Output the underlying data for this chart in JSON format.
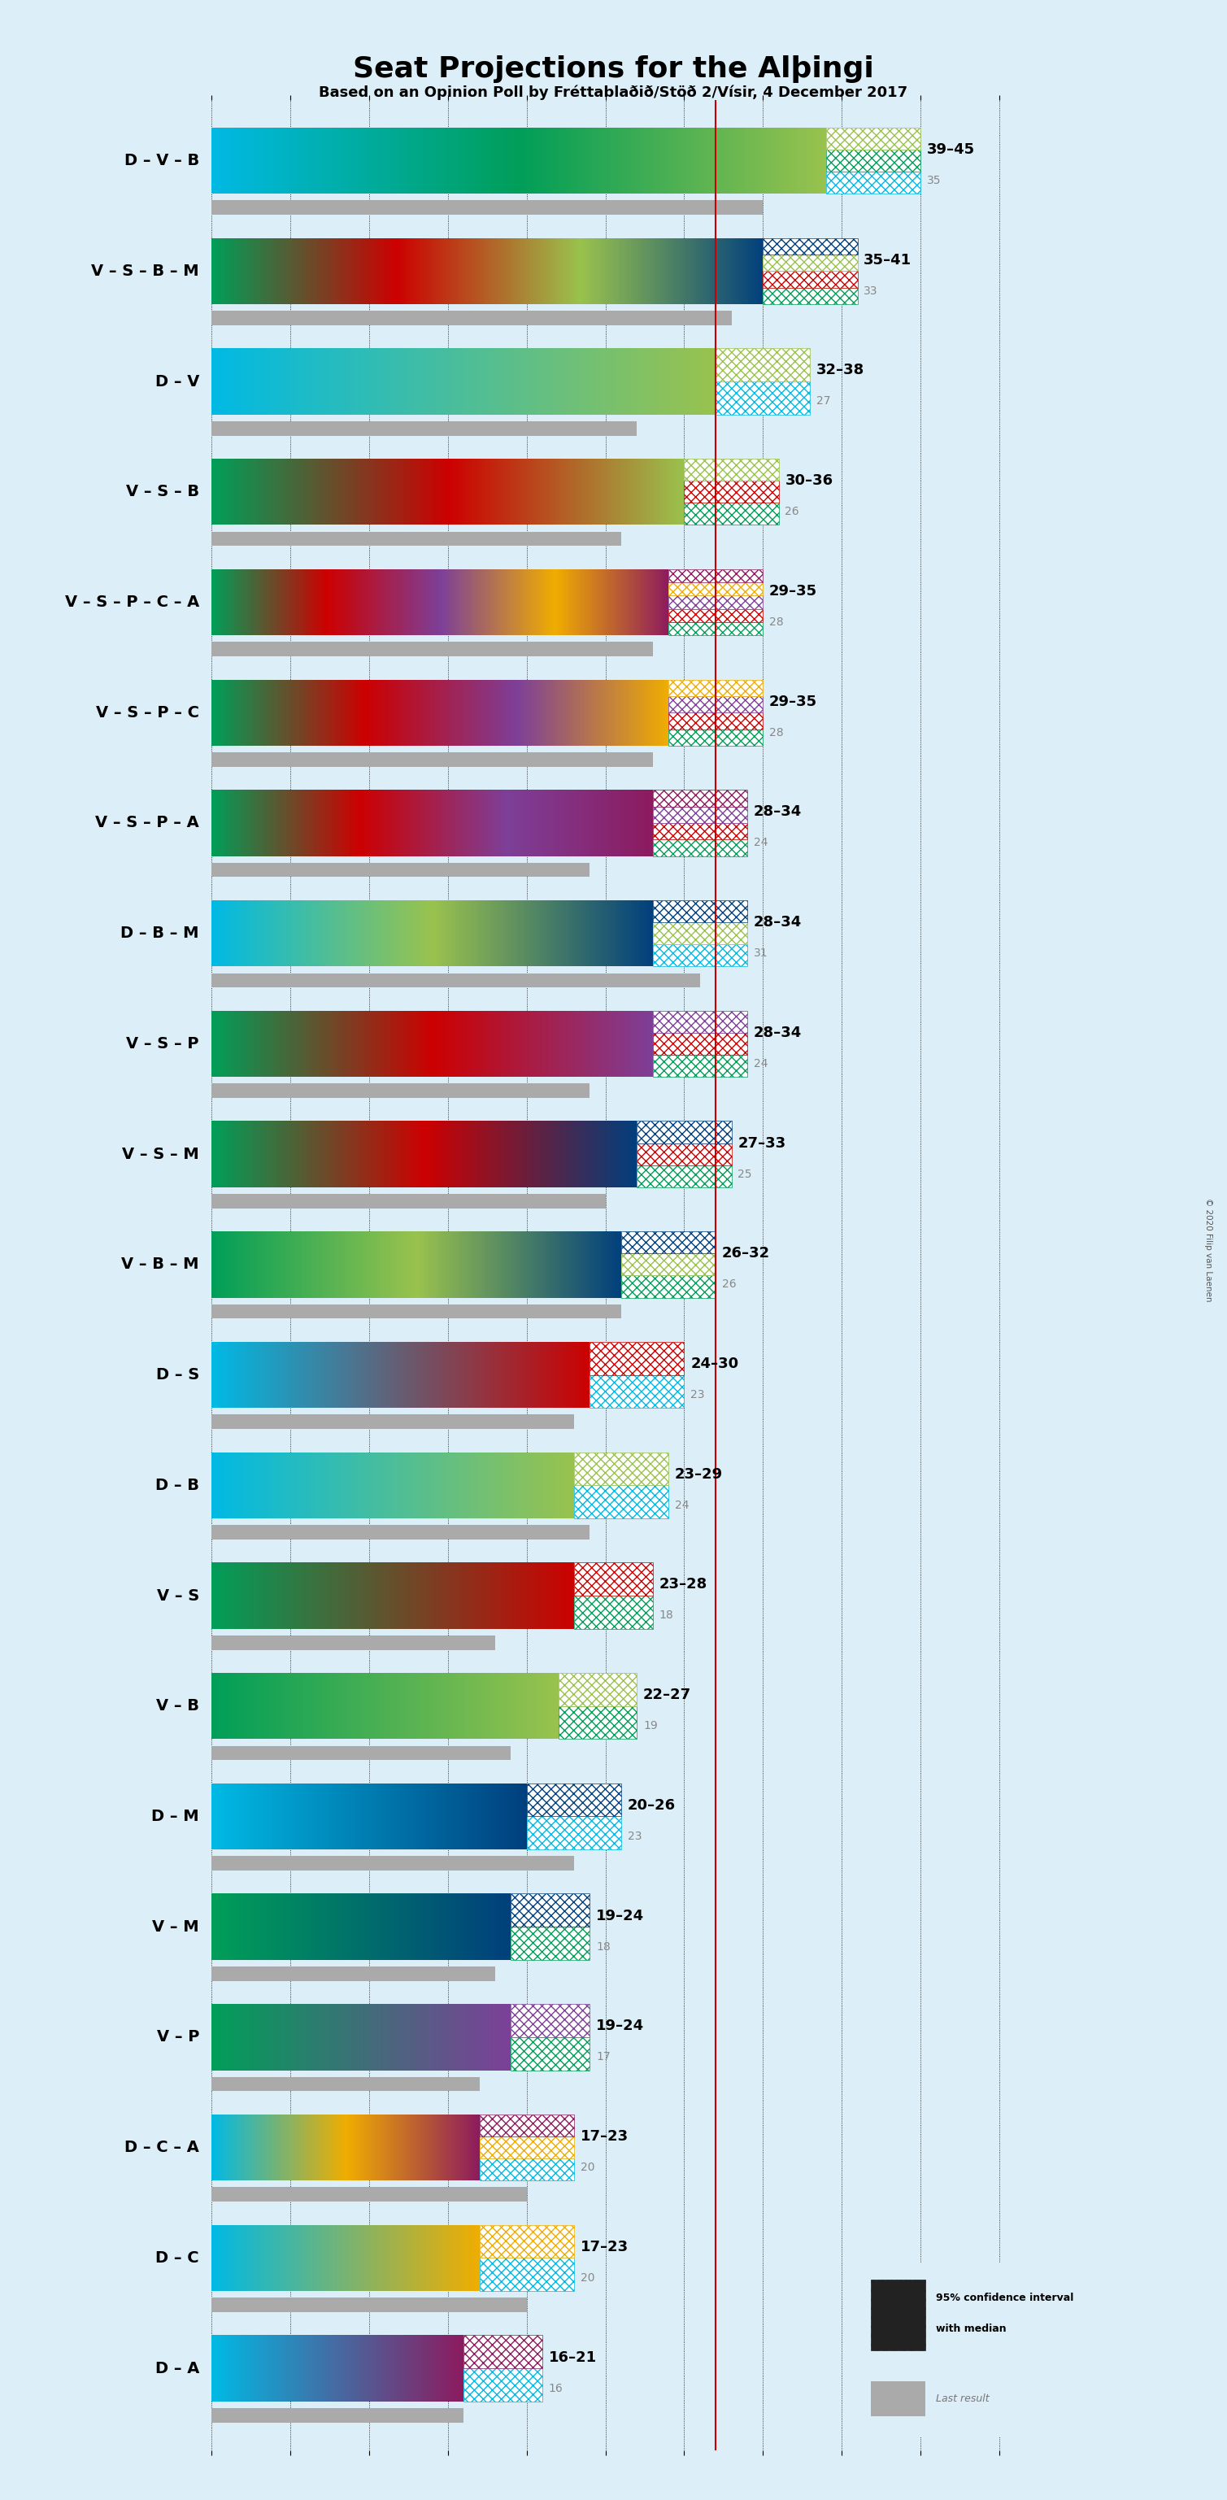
{
  "title": "Seat Projections for the Alþingi",
  "subtitle": "Based on an Opinion Poll by Fréttablaðið/Stöð 2/Vísir, 4 December 2017",
  "copyright": "© 2020 Filip van Laenen",
  "background_color": "#dceef8",
  "majority_line": 32,
  "x_min": 0,
  "x_max": 50,
  "coalitions": [
    {
      "name": "D – V – B",
      "colors": [
        "#00b9e4",
        "#009e58",
        "#99c24d"
      ],
      "ci_low": 39,
      "ci_high": 45,
      "last": 35
    },
    {
      "name": "V – S – B – M",
      "colors": [
        "#009e58",
        "#cc0000",
        "#99c24d",
        "#003f7d"
      ],
      "ci_low": 35,
      "ci_high": 41,
      "last": 33
    },
    {
      "name": "D – V",
      "colors": [
        "#00b9e4",
        "#99c24d"
      ],
      "ci_low": 32,
      "ci_high": 38,
      "last": 27
    },
    {
      "name": "V – S – B",
      "colors": [
        "#009e58",
        "#cc0000",
        "#99c24d"
      ],
      "ci_low": 30,
      "ci_high": 36,
      "last": 26
    },
    {
      "name": "V – S – P – C – A",
      "colors": [
        "#009e58",
        "#cc0000",
        "#7d3f98",
        "#f0ad00",
        "#8c1a5e"
      ],
      "ci_low": 29,
      "ci_high": 35,
      "last": 28
    },
    {
      "name": "V – S – P – C",
      "colors": [
        "#009e58",
        "#cc0000",
        "#7d3f98",
        "#f0ad00"
      ],
      "ci_low": 29,
      "ci_high": 35,
      "last": 28
    },
    {
      "name": "V – S – P – A",
      "colors": [
        "#009e58",
        "#cc0000",
        "#7d3f98",
        "#8c1a5e"
      ],
      "ci_low": 28,
      "ci_high": 34,
      "last": 24
    },
    {
      "name": "D – B – M",
      "colors": [
        "#00b9e4",
        "#99c24d",
        "#003f7d"
      ],
      "ci_low": 28,
      "ci_high": 34,
      "last": 31
    },
    {
      "name": "V – S – P",
      "colors": [
        "#009e58",
        "#cc0000",
        "#7d3f98"
      ],
      "ci_low": 28,
      "ci_high": 34,
      "last": 24
    },
    {
      "name": "V – S – M",
      "colors": [
        "#009e58",
        "#cc0000",
        "#003f7d"
      ],
      "ci_low": 27,
      "ci_high": 33,
      "last": 25
    },
    {
      "name": "V – B – M",
      "colors": [
        "#009e58",
        "#99c24d",
        "#003f7d"
      ],
      "ci_low": 26,
      "ci_high": 32,
      "last": 26
    },
    {
      "name": "D – S",
      "colors": [
        "#00b9e4",
        "#cc0000"
      ],
      "ci_low": 24,
      "ci_high": 30,
      "last": 23
    },
    {
      "name": "D – B",
      "colors": [
        "#00b9e4",
        "#99c24d"
      ],
      "ci_low": 23,
      "ci_high": 29,
      "last": 24
    },
    {
      "name": "V – S",
      "colors": [
        "#009e58",
        "#cc0000"
      ],
      "ci_low": 23,
      "ci_high": 28,
      "last": 18
    },
    {
      "name": "V – B",
      "colors": [
        "#009e58",
        "#99c24d"
      ],
      "ci_low": 22,
      "ci_high": 27,
      "last": 19
    },
    {
      "name": "D – M",
      "colors": [
        "#00b9e4",
        "#003f7d"
      ],
      "ci_low": 20,
      "ci_high": 26,
      "last": 23
    },
    {
      "name": "V – M",
      "colors": [
        "#009e58",
        "#003f7d"
      ],
      "ci_low": 19,
      "ci_high": 24,
      "last": 18
    },
    {
      "name": "V – P",
      "colors": [
        "#009e58",
        "#7d3f98"
      ],
      "ci_low": 19,
      "ci_high": 24,
      "last": 17
    },
    {
      "name": "D – C – A",
      "colors": [
        "#00b9e4",
        "#f0ad00",
        "#8c1a5e"
      ],
      "ci_low": 17,
      "ci_high": 23,
      "last": 20
    },
    {
      "name": "D – C",
      "colors": [
        "#00b9e4",
        "#f0ad00"
      ],
      "ci_low": 17,
      "ci_high": 23,
      "last": 20
    },
    {
      "name": "D – A",
      "colors": [
        "#00b9e4",
        "#8c1a5e"
      ],
      "ci_low": 16,
      "ci_high": 21,
      "last": 16
    }
  ]
}
